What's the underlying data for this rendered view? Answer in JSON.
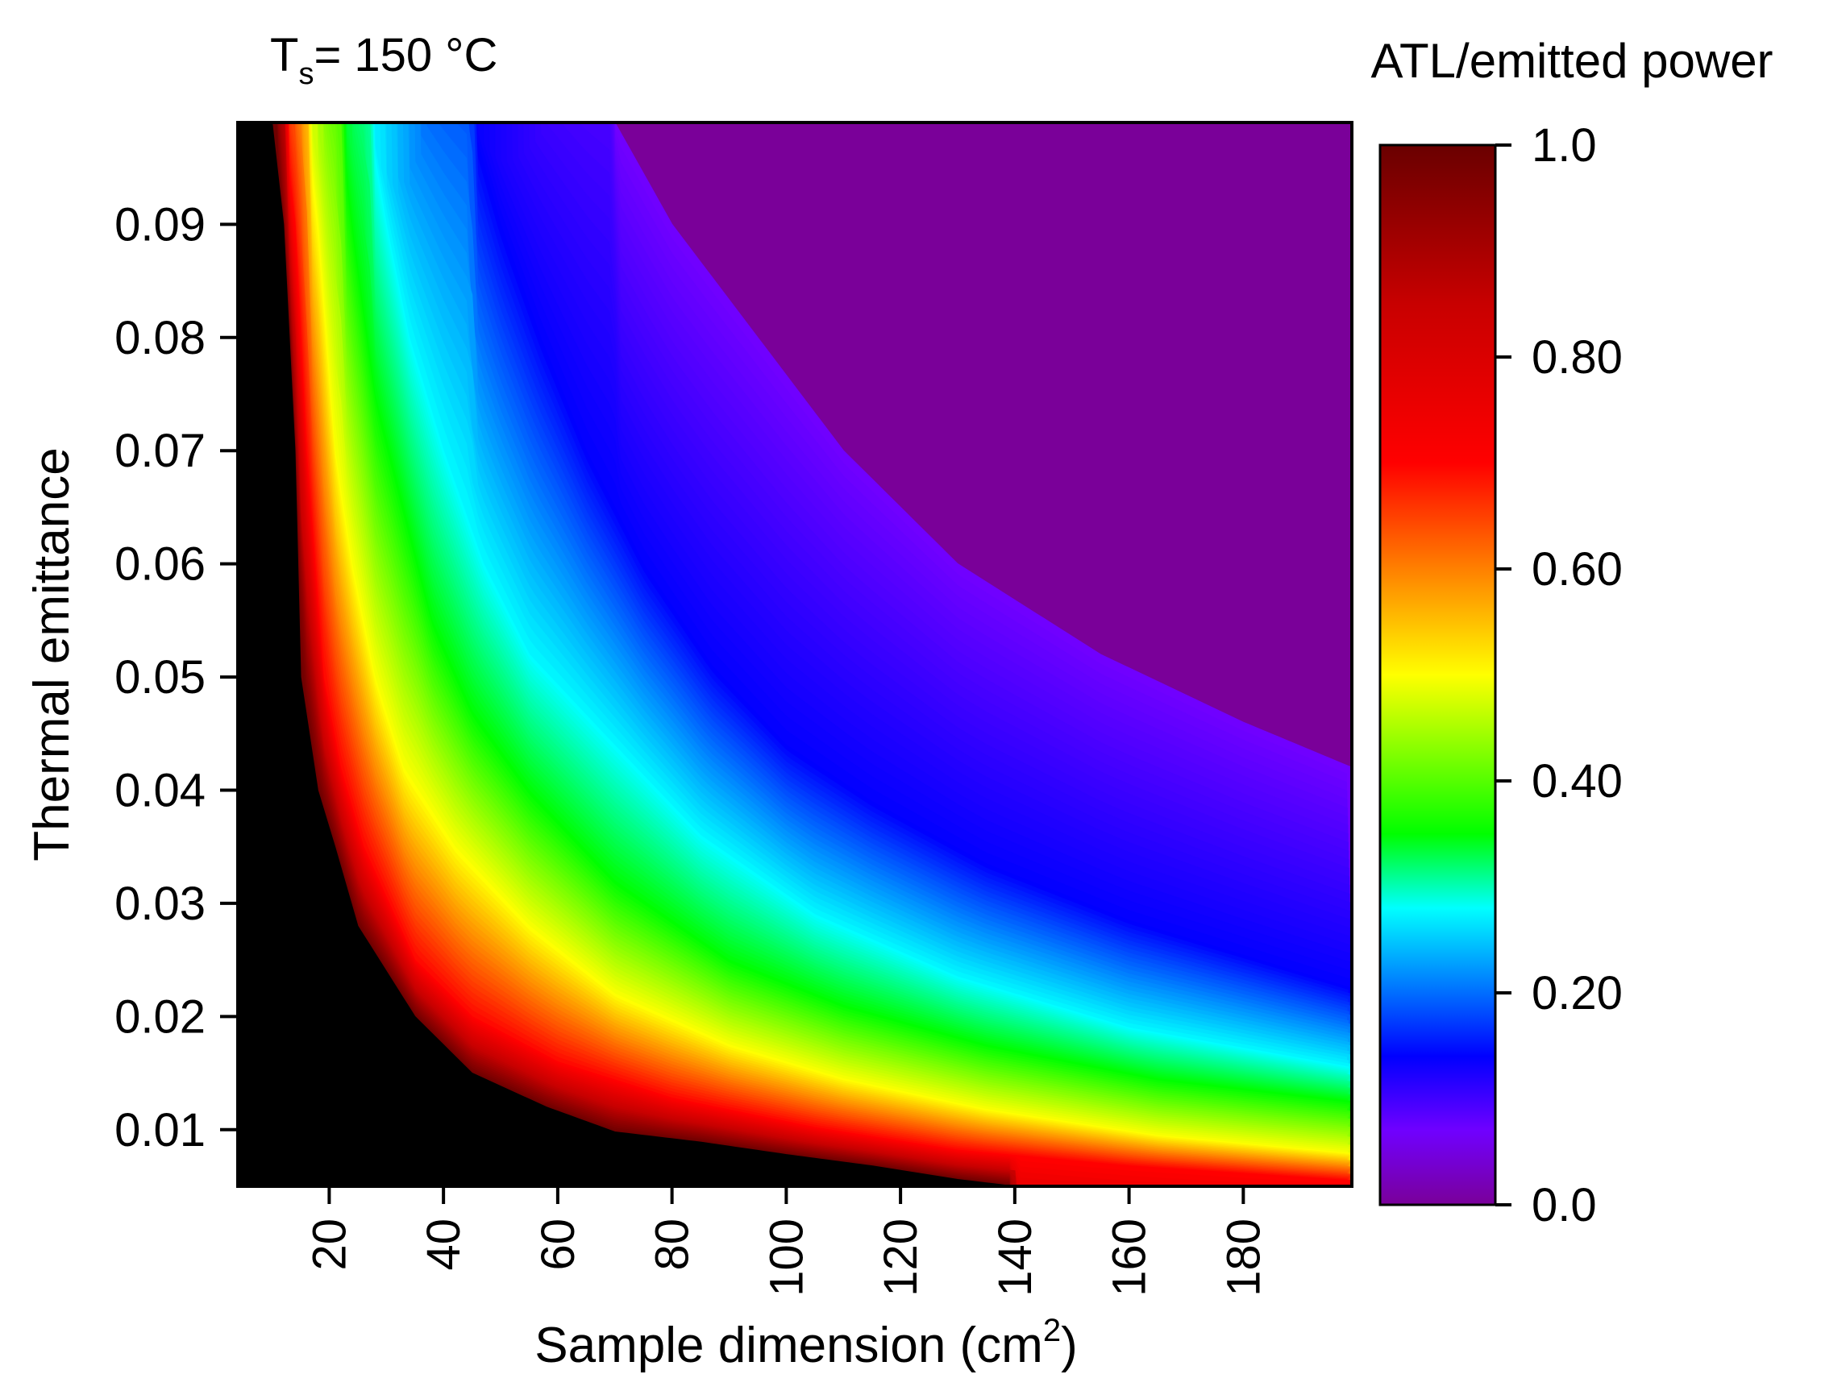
{
  "chart_data": {
    "type": "heatmap",
    "title_main": "T",
    "title_sub": "s",
    "title_rest": "= 150 °C",
    "xlabel_main": "Sample dimension (cm",
    "xlabel_sup": "2",
    "xlabel_end": ")",
    "ylabel": "Thermal emittance",
    "colorbar_label": "ATL/emitted power",
    "xlim": [
      4,
      199
    ],
    "ylim": [
      0.005,
      0.099
    ],
    "x_ticks": [
      20,
      40,
      60,
      80,
      100,
      120,
      140,
      160,
      180
    ],
    "x_tick_labels": [
      "20",
      "40",
      "60",
      "80",
      "100",
      "120",
      "140",
      "160",
      "180"
    ],
    "y_ticks": [
      0.01,
      0.02,
      0.03,
      0.04,
      0.05,
      0.06,
      0.07,
      0.08,
      0.09
    ],
    "y_tick_labels": [
      "0.01",
      "0.02",
      "0.03",
      "0.04",
      "0.05",
      "0.06",
      "0.07",
      "0.08",
      "0.09"
    ],
    "colorbar_range": [
      0.0,
      1.0
    ],
    "colorbar_ticks": [
      0.0,
      0.2,
      0.4,
      0.6,
      0.8,
      1.0
    ],
    "colorbar_tick_labels": [
      "0.0",
      "0.20",
      "0.40",
      "0.60",
      "0.80",
      "1.0"
    ],
    "colormap": [
      {
        "value": 0.0,
        "color": "#7a0099"
      },
      {
        "value": 0.07,
        "color": "#7000ff"
      },
      {
        "value": 0.14,
        "color": "#0000ff"
      },
      {
        "value": 0.21,
        "color": "#0080ff"
      },
      {
        "value": 0.28,
        "color": "#00ffff"
      },
      {
        "value": 0.35,
        "color": "#00ff00"
      },
      {
        "value": 0.5,
        "color": "#ffff00"
      },
      {
        "value": 0.6,
        "color": "#ff8000"
      },
      {
        "value": 0.7,
        "color": "#ff0000"
      },
      {
        "value": 0.85,
        "color": "#c80000"
      },
      {
        "value": 1.0,
        "color": "#6a0000"
      }
    ],
    "saturated_color": "#000000",
    "contours": [
      {
        "level": 1.0,
        "points": [
          [
            10,
            0.099
          ],
          [
            12,
            0.09
          ],
          [
            14,
            0.07
          ],
          [
            15,
            0.05
          ],
          [
            18,
            0.04
          ],
          [
            21,
            0.035
          ],
          [
            25,
            0.028
          ],
          [
            35,
            0.02
          ],
          [
            45,
            0.015
          ],
          [
            58,
            0.012
          ],
          [
            70,
            0.0098
          ],
          [
            85,
            0.0089
          ],
          [
            100,
            0.0078
          ],
          [
            115,
            0.0068
          ],
          [
            130,
            0.0056
          ],
          [
            140,
            0.005
          ]
        ]
      },
      {
        "level": 0.7,
        "points": [
          [
            12,
            0.099
          ],
          [
            14,
            0.09
          ],
          [
            16,
            0.07
          ],
          [
            19,
            0.05
          ],
          [
            22,
            0.042
          ],
          [
            26,
            0.035
          ],
          [
            35,
            0.025
          ],
          [
            45,
            0.02
          ],
          [
            60,
            0.016
          ],
          [
            80,
            0.0128
          ],
          [
            105,
            0.0102
          ],
          [
            130,
            0.0082
          ],
          [
            160,
            0.0068
          ],
          [
            199,
            0.0055
          ]
        ]
      },
      {
        "level": 0.5,
        "points": [
          [
            16,
            0.099
          ],
          [
            18,
            0.09
          ],
          [
            21,
            0.07
          ],
          [
            24,
            0.06
          ],
          [
            28,
            0.05
          ],
          [
            33,
            0.042
          ],
          [
            42,
            0.035
          ],
          [
            55,
            0.028
          ],
          [
            70,
            0.022
          ],
          [
            90,
            0.0175
          ],
          [
            110,
            0.0145
          ],
          [
            135,
            0.0118
          ],
          [
            165,
            0.0095
          ],
          [
            199,
            0.0079
          ]
        ]
      },
      {
        "level": 0.35,
        "points": [
          [
            22,
            0.099
          ],
          [
            24,
            0.09
          ],
          [
            28,
            0.075
          ],
          [
            33,
            0.065
          ],
          [
            38,
            0.055
          ],
          [
            45,
            0.047
          ],
          [
            55,
            0.04
          ],
          [
            70,
            0.032
          ],
          [
            90,
            0.025
          ],
          [
            110,
            0.021
          ],
          [
            135,
            0.0175
          ],
          [
            165,
            0.0145
          ],
          [
            199,
            0.0125
          ]
        ]
      },
      {
        "level": 0.28,
        "points": [
          [
            27,
            0.099
          ],
          [
            30,
            0.09
          ],
          [
            34,
            0.08
          ],
          [
            40,
            0.07
          ],
          [
            47,
            0.06
          ],
          [
            55,
            0.052
          ],
          [
            68,
            0.045
          ],
          [
            85,
            0.036
          ],
          [
            105,
            0.029
          ],
          [
            130,
            0.0235
          ],
          [
            160,
            0.019
          ],
          [
            199,
            0.0155
          ]
        ]
      },
      {
        "level": 0.14,
        "points": [
          [
            45,
            0.099
          ],
          [
            50,
            0.09
          ],
          [
            57,
            0.08
          ],
          [
            65,
            0.07
          ],
          [
            75,
            0.06
          ],
          [
            87,
            0.051
          ],
          [
            100,
            0.044
          ],
          [
            115,
            0.039
          ],
          [
            135,
            0.0335
          ],
          [
            160,
            0.0285
          ],
          [
            199,
            0.0225
          ]
        ]
      },
      {
        "level": 0.07,
        "points": [
          [
            70,
            0.099
          ],
          [
            80,
            0.09
          ],
          [
            95,
            0.08
          ],
          [
            110,
            0.07
          ],
          [
            130,
            0.06
          ],
          [
            155,
            0.052
          ],
          [
            180,
            0.046
          ],
          [
            199,
            0.042
          ]
        ]
      }
    ]
  }
}
